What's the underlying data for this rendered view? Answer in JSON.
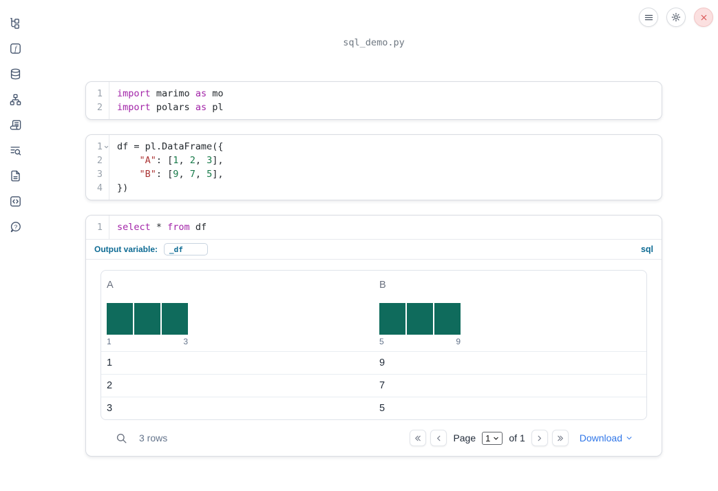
{
  "colors": {
    "accent_blue": "#0e6b94",
    "link_blue": "#2f76e8",
    "bar_green": "#0f6b5c",
    "keyword_purple": "#a224a8",
    "string_red": "#ab3333",
    "number_green": "#177a49",
    "close_red": "#d95252"
  },
  "titlebar": {
    "filename": "sql_demo.py"
  },
  "topbar": {
    "icons": [
      "menu-icon",
      "gear-icon",
      "close-icon"
    ]
  },
  "sidebar": {
    "icons": [
      "file-tree-icon",
      "function-square-icon",
      "database-icon",
      "hierarchy-icon",
      "scroll-icon",
      "list-search-icon",
      "document-icon",
      "code-brackets-icon",
      "help-circle-icon"
    ]
  },
  "cells": [
    {
      "kind": "python",
      "lines": [
        {
          "num": "1",
          "tokens": [
            {
              "t": "kw",
              "v": "import"
            },
            {
              "t": "pl",
              "v": " marimo "
            },
            {
              "t": "kw",
              "v": "as"
            },
            {
              "t": "pl",
              "v": " mo"
            }
          ]
        },
        {
          "num": "2",
          "tokens": [
            {
              "t": "kw",
              "v": "import"
            },
            {
              "t": "pl",
              "v": " polars "
            },
            {
              "t": "kw",
              "v": "as"
            },
            {
              "t": "pl",
              "v": " pl"
            }
          ]
        }
      ]
    },
    {
      "kind": "python",
      "lines": [
        {
          "num": "1",
          "tokens": [
            {
              "t": "pl",
              "v": "df = pl.DataFrame({"
            }
          ]
        },
        {
          "num": "2",
          "tokens": [
            {
              "t": "pl",
              "v": "    "
            },
            {
              "t": "str",
              "v": "\"A\""
            },
            {
              "t": "pl",
              "v": ": ["
            },
            {
              "t": "num",
              "v": "1"
            },
            {
              "t": "pl",
              "v": ", "
            },
            {
              "t": "num",
              "v": "2"
            },
            {
              "t": "pl",
              "v": ", "
            },
            {
              "t": "num",
              "v": "3"
            },
            {
              "t": "pl",
              "v": "],"
            }
          ]
        },
        {
          "num": "3",
          "tokens": [
            {
              "t": "pl",
              "v": "    "
            },
            {
              "t": "str",
              "v": "\"B\""
            },
            {
              "t": "pl",
              "v": ": ["
            },
            {
              "t": "num",
              "v": "9"
            },
            {
              "t": "pl",
              "v": ", "
            },
            {
              "t": "num",
              "v": "7"
            },
            {
              "t": "pl",
              "v": ", "
            },
            {
              "t": "num",
              "v": "5"
            },
            {
              "t": "pl",
              "v": "],"
            }
          ]
        },
        {
          "num": "4",
          "tokens": [
            {
              "t": "pl",
              "v": "})"
            }
          ]
        }
      ]
    },
    {
      "kind": "sql",
      "lines": [
        {
          "num": "1",
          "tokens": [
            {
              "t": "kw",
              "v": "select"
            },
            {
              "t": "pl",
              "v": " * "
            },
            {
              "t": "kw",
              "v": "from"
            },
            {
              "t": "pl",
              "v": " df"
            }
          ]
        }
      ],
      "output_variable": {
        "label": "Output variable:",
        "value": "_df",
        "language": "sql"
      }
    }
  ],
  "table": {
    "columns": [
      {
        "name": "A",
        "histogram": {
          "bars": [
            1,
            1,
            1
          ],
          "tick_left": "1",
          "tick_right": "3"
        }
      },
      {
        "name": "B",
        "histogram": {
          "bars": [
            1,
            1,
            1
          ],
          "tick_left": "5",
          "tick_right": "9"
        }
      }
    ],
    "rows": [
      [
        "1",
        "9"
      ],
      [
        "2",
        "7"
      ],
      [
        "3",
        "5"
      ]
    ],
    "footer": {
      "row_count": "3 rows",
      "page_label": "Page",
      "page_value": "1",
      "of_label": "of 1",
      "download_label": "Download"
    }
  }
}
